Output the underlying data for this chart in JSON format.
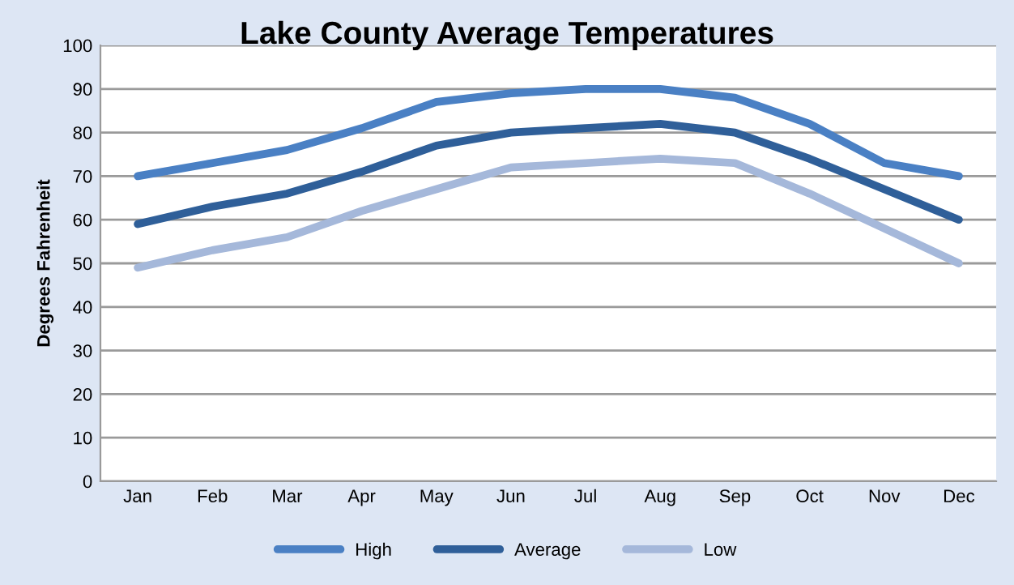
{
  "chart_data": {
    "type": "line",
    "title": "Lake County Average Temperatures",
    "ylabel": "Degrees Fahrenheit",
    "categories": [
      "Jan",
      "Feb",
      "Mar",
      "Apr",
      "May",
      "Jun",
      "Jul",
      "Aug",
      "Sep",
      "Oct",
      "Nov",
      "Dec"
    ],
    "series": [
      {
        "name": "High",
        "color": "#4a80c4",
        "values": [
          70,
          73,
          76,
          81,
          87,
          89,
          90,
          90,
          88,
          82,
          73,
          70
        ]
      },
      {
        "name": "Average",
        "color": "#2f5f99",
        "values": [
          59,
          63,
          66,
          71,
          77,
          80,
          81,
          82,
          80,
          74,
          67,
          60
        ]
      },
      {
        "name": "Low",
        "color": "#a5b8da",
        "values": [
          49,
          53,
          56,
          62,
          67,
          72,
          73,
          74,
          73,
          66,
          58,
          50
        ]
      }
    ],
    "ylim": [
      0,
      100
    ],
    "yticks": [
      0,
      10,
      20,
      30,
      40,
      50,
      60,
      70,
      80,
      90,
      100
    ],
    "grid": "y",
    "legend": "bottom",
    "marker": "none",
    "line_style": "solid"
  }
}
